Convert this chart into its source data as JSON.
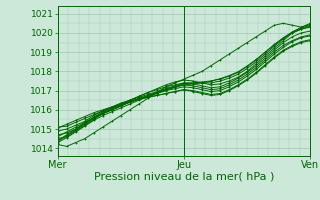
{
  "bg_color": "#cce8d8",
  "grid_color": "#aaccbb",
  "line_color": "#006600",
  "xlabel": "Pression niveau de la mer( hPa )",
  "xlabel_fontsize": 8,
  "yticks": [
    1014,
    1015,
    1016,
    1017,
    1018,
    1019,
    1020,
    1021
  ],
  "ylim": [
    1013.6,
    1021.4
  ],
  "xlim": [
    0,
    48
  ],
  "xtick_labels": [
    "Mer",
    "Jeu",
    "Ven"
  ],
  "xtick_positions": [
    0,
    24,
    48
  ],
  "series": [
    [
      1014.2,
      1014.1,
      1014.3,
      1014.5,
      1014.8,
      1015.1,
      1015.4,
      1015.7,
      1016.0,
      1016.3,
      1016.6,
      1016.9,
      1017.2,
      1017.4,
      1017.6,
      1017.8,
      1018.0,
      1018.3,
      1018.6,
      1018.9,
      1019.2,
      1019.5,
      1019.8,
      1020.1,
      1020.4,
      1020.5,
      1020.4,
      1020.3,
      1020.5
    ],
    [
      1014.5,
      1014.6,
      1014.9,
      1015.2,
      1015.5,
      1015.8,
      1016.0,
      1016.2,
      1016.5,
      1016.7,
      1016.9,
      1017.1,
      1017.3,
      1017.45,
      1017.55,
      1017.5,
      1017.4,
      1017.3,
      1017.35,
      1017.5,
      1017.7,
      1018.0,
      1018.4,
      1018.8,
      1019.2,
      1019.6,
      1020.0,
      1020.2,
      1020.3
    ],
    [
      1014.7,
      1014.8,
      1015.0,
      1015.3,
      1015.6,
      1015.9,
      1016.1,
      1016.3,
      1016.5,
      1016.7,
      1016.9,
      1017.05,
      1017.2,
      1017.3,
      1017.4,
      1017.35,
      1017.25,
      1017.15,
      1017.2,
      1017.4,
      1017.65,
      1017.95,
      1018.3,
      1018.7,
      1019.1,
      1019.5,
      1019.8,
      1020.0,
      1020.1
    ],
    [
      1014.9,
      1015.0,
      1015.2,
      1015.4,
      1015.7,
      1015.95,
      1016.15,
      1016.35,
      1016.5,
      1016.65,
      1016.8,
      1016.95,
      1017.1,
      1017.2,
      1017.3,
      1017.25,
      1017.15,
      1017.05,
      1017.1,
      1017.3,
      1017.55,
      1017.85,
      1018.2,
      1018.6,
      1019.0,
      1019.35,
      1019.6,
      1019.8,
      1019.9
    ],
    [
      1015.1,
      1015.15,
      1015.35,
      1015.55,
      1015.75,
      1015.95,
      1016.1,
      1016.25,
      1016.4,
      1016.55,
      1016.65,
      1016.75,
      1016.85,
      1016.95,
      1017.05,
      1017.0,
      1016.9,
      1016.8,
      1016.85,
      1017.05,
      1017.3,
      1017.6,
      1017.95,
      1018.35,
      1018.75,
      1019.1,
      1019.35,
      1019.55,
      1019.65
    ],
    [
      1014.3,
      1014.55,
      1014.85,
      1015.15,
      1015.45,
      1015.7,
      1015.9,
      1016.1,
      1016.3,
      1016.5,
      1016.7,
      1016.9,
      1017.1,
      1017.25,
      1017.4,
      1017.4,
      1017.4,
      1017.4,
      1017.5,
      1017.65,
      1017.85,
      1018.15,
      1018.5,
      1018.9,
      1019.3,
      1019.7,
      1020.05,
      1020.3,
      1020.45
    ],
    [
      1014.6,
      1014.85,
      1015.1,
      1015.35,
      1015.6,
      1015.8,
      1016.0,
      1016.2,
      1016.4,
      1016.55,
      1016.7,
      1016.85,
      1017.0,
      1017.1,
      1017.2,
      1017.15,
      1017.05,
      1016.95,
      1017.0,
      1017.2,
      1017.45,
      1017.75,
      1018.1,
      1018.5,
      1018.9,
      1019.25,
      1019.55,
      1019.75,
      1019.85
    ],
    [
      1014.4,
      1014.7,
      1015.0,
      1015.3,
      1015.6,
      1015.85,
      1016.05,
      1016.25,
      1016.45,
      1016.6,
      1016.75,
      1016.9,
      1017.05,
      1017.2,
      1017.35,
      1017.4,
      1017.45,
      1017.5,
      1017.6,
      1017.75,
      1017.95,
      1018.25,
      1018.6,
      1019.0,
      1019.4,
      1019.75,
      1020.05,
      1020.25,
      1020.4
    ],
    [
      1015.05,
      1015.25,
      1015.45,
      1015.65,
      1015.85,
      1016.0,
      1016.15,
      1016.3,
      1016.45,
      1016.55,
      1016.65,
      1016.75,
      1016.85,
      1016.95,
      1017.05,
      1016.95,
      1016.85,
      1016.75,
      1016.8,
      1017.0,
      1017.25,
      1017.55,
      1017.9,
      1018.3,
      1018.7,
      1019.05,
      1019.3,
      1019.5,
      1019.6
    ],
    [
      1014.35,
      1014.65,
      1014.95,
      1015.25,
      1015.55,
      1015.8,
      1016.0,
      1016.2,
      1016.4,
      1016.57,
      1016.72,
      1016.87,
      1017.02,
      1017.17,
      1017.3,
      1017.35,
      1017.4,
      1017.5,
      1017.62,
      1017.78,
      1017.98,
      1018.28,
      1018.62,
      1019.0,
      1019.38,
      1019.72,
      1020.0,
      1020.2,
      1020.35
    ]
  ]
}
